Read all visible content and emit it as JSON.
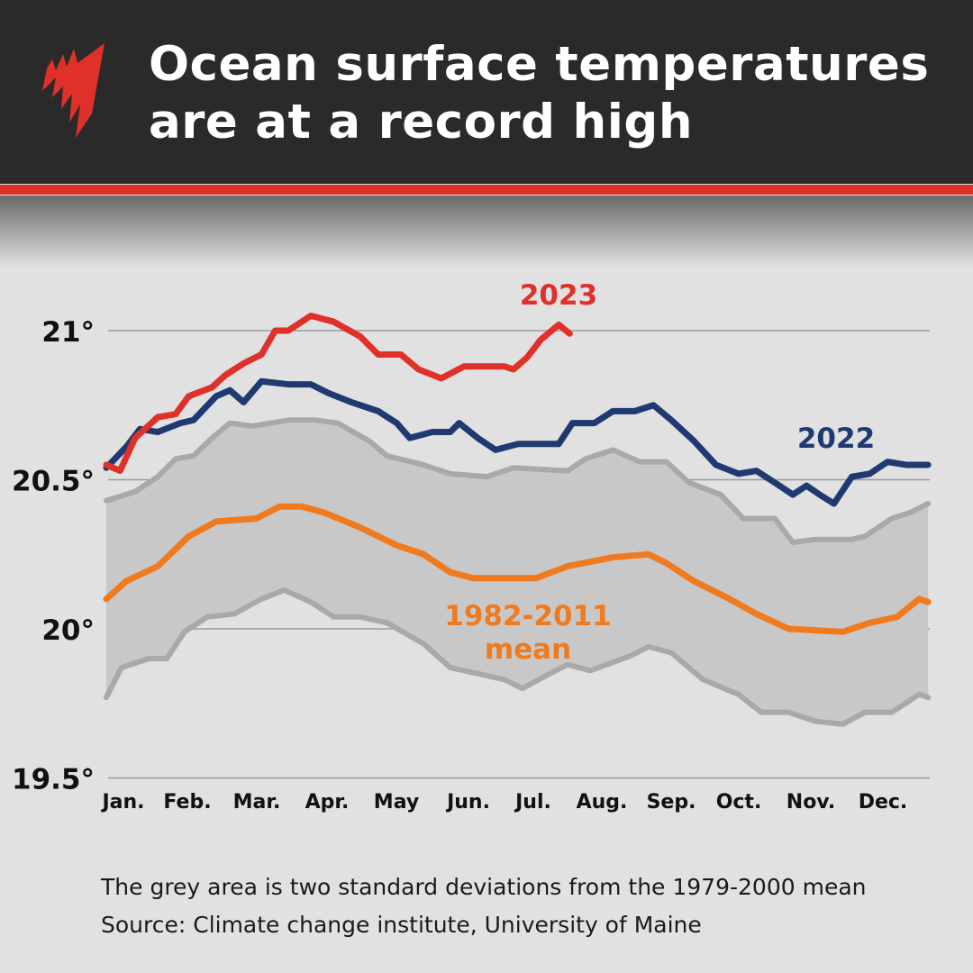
{
  "header": {
    "title_line1": "Ocean surface temperatures",
    "title_line2": "are at a record high",
    "logo": "sbs-logo"
  },
  "colors": {
    "header_bg": "#2a2a2a",
    "accent": "#e0302a",
    "series_2023": "#e0302a",
    "series_2022": "#1f3a70",
    "series_mean": "#f07a1e",
    "band_fill": "#c8c8c8",
    "band_edge": "#a9a9a9"
  },
  "chart_data": {
    "type": "line",
    "title": "Ocean surface temperatures are at a record high",
    "ylim": [
      19.5,
      21.1
    ],
    "xlim": [
      0,
      12
    ],
    "yticks": [
      19.5,
      20,
      20.5,
      21
    ],
    "ytick_labels": [
      "19.5°",
      "20°",
      "20.5°",
      "21°"
    ],
    "xtick_labels": [
      "Jan.",
      "Feb.",
      "Mar.",
      "Apr.",
      "May",
      "Jun.",
      "Jul.",
      "Aug.",
      "Sep.",
      "Oct.",
      "Nov.",
      "Dec."
    ],
    "grid": "horizontal",
    "x_unit": "month (0 = start of Jan.)",
    "series": [
      {
        "name": "2023",
        "x": [
          0,
          0.2,
          0.42,
          0.75,
          1.01,
          1.2,
          1.54,
          1.73,
          2.0,
          2.26,
          2.46,
          2.65,
          2.98,
          3.31,
          3.7,
          3.96,
          4.29,
          4.55,
          4.88,
          5.21,
          5.54,
          5.8,
          5.93,
          6.13,
          6.33,
          6.59,
          6.75
        ],
        "y": [
          20.55,
          20.53,
          20.64,
          20.71,
          20.72,
          20.78,
          20.81,
          20.85,
          20.89,
          20.92,
          21.0,
          21.0,
          21.05,
          21.03,
          20.98,
          20.92,
          20.92,
          20.87,
          20.84,
          20.88,
          20.88,
          20.88,
          20.87,
          20.91,
          20.97,
          21.02,
          20.99
        ]
      },
      {
        "name": "2022",
        "x": [
          0,
          0.29,
          0.49,
          0.75,
          1.08,
          1.27,
          1.6,
          1.8,
          2.0,
          2.26,
          2.65,
          2.98,
          3.24,
          3.57,
          3.96,
          4.23,
          4.42,
          4.75,
          5.01,
          5.14,
          5.41,
          5.67,
          6.0,
          6.59,
          6.79,
          7.11,
          7.38,
          7.7,
          7.97,
          8.23,
          8.56,
          8.88,
          9.21,
          9.47,
          9.74,
          10.0,
          10.2,
          10.39,
          10.6,
          10.86,
          11.12,
          11.38,
          11.65,
          11.97
        ],
        "y": [
          20.54,
          20.61,
          20.67,
          20.66,
          20.69,
          20.7,
          20.78,
          20.8,
          20.76,
          20.83,
          20.82,
          20.82,
          20.79,
          20.76,
          20.73,
          20.69,
          20.64,
          20.66,
          20.66,
          20.69,
          20.64,
          20.6,
          20.62,
          20.62,
          20.69,
          20.69,
          20.73,
          20.73,
          20.75,
          20.7,
          20.63,
          20.55,
          20.52,
          20.53,
          20.49,
          20.45,
          20.48,
          20.45,
          20.42,
          20.51,
          20.52,
          20.56,
          20.55,
          20.55
        ]
      },
      {
        "name": "1982-2011 mean",
        "x": [
          0,
          0.29,
          0.75,
          1.2,
          1.6,
          2.19,
          2.52,
          2.85,
          3.17,
          3.7,
          4.23,
          4.62,
          5.01,
          5.34,
          6.26,
          6.72,
          7.38,
          7.9,
          8.16,
          8.56,
          9.08,
          9.47,
          9.94,
          10.73,
          11.12,
          11.52,
          11.84,
          11.97
        ],
        "y": [
          20.1,
          20.16,
          20.21,
          20.31,
          20.36,
          20.37,
          20.41,
          20.41,
          20.39,
          20.34,
          20.28,
          20.25,
          20.19,
          20.17,
          20.17,
          20.21,
          20.24,
          20.25,
          20.22,
          20.16,
          20.1,
          20.05,
          20.0,
          19.99,
          20.02,
          20.04,
          20.1,
          20.09
        ]
      },
      {
        "name": "upper bound",
        "x": [
          0,
          0.42,
          0.75,
          1.01,
          1.27,
          1.54,
          1.8,
          2.13,
          2.65,
          3.04,
          3.37,
          3.83,
          4.09,
          4.62,
          5.01,
          5.54,
          5.93,
          6.72,
          6.98,
          7.38,
          7.77,
          8.16,
          8.49,
          8.95,
          9.28,
          9.74,
          10.0,
          10.33,
          10.86,
          11.05,
          11.44,
          11.71,
          11.97
        ],
        "y": [
          20.43,
          20.46,
          20.51,
          20.57,
          20.58,
          20.64,
          20.69,
          20.68,
          20.7,
          20.7,
          20.69,
          20.63,
          20.58,
          20.55,
          20.52,
          20.51,
          20.54,
          20.53,
          20.57,
          20.6,
          20.56,
          20.56,
          20.49,
          20.45,
          20.37,
          20.37,
          20.29,
          20.3,
          20.3,
          20.31,
          20.37,
          20.39,
          20.42
        ]
      },
      {
        "name": "lower bound",
        "x": [
          0,
          0.22,
          0.62,
          0.88,
          1.14,
          1.47,
          1.86,
          2.26,
          2.59,
          2.98,
          3.31,
          3.7,
          4.09,
          4.62,
          5.01,
          5.41,
          5.8,
          6.06,
          6.46,
          6.72,
          7.05,
          7.64,
          7.9,
          8.23,
          8.69,
          9.21,
          9.54,
          9.94,
          10.33,
          10.73,
          11.05,
          11.44,
          11.84,
          11.97
        ],
        "y": [
          19.77,
          19.87,
          19.9,
          19.9,
          19.99,
          20.04,
          20.05,
          20.1,
          20.13,
          20.09,
          20.04,
          20.04,
          20.02,
          19.95,
          19.87,
          19.85,
          19.83,
          19.8,
          19.85,
          19.88,
          19.86,
          19.91,
          19.94,
          19.92,
          19.83,
          19.78,
          19.72,
          19.72,
          19.69,
          19.68,
          19.72,
          19.72,
          19.78,
          19.77
        ]
      }
    ],
    "annotations": [
      {
        "text": "2023",
        "series": "2023"
      },
      {
        "text": "2022",
        "series": "2022"
      },
      {
        "text_line1": "1982-2011",
        "text_line2": "mean",
        "series": "1982-2011 mean"
      }
    ],
    "band_description_note": "The grey area is two standard deviations from the 1979-2000 mean"
  },
  "footer": {
    "note": "The grey area is two standard deviations from the 1979-2000 mean",
    "source": "Source: Climate change institute, University of Maine"
  }
}
